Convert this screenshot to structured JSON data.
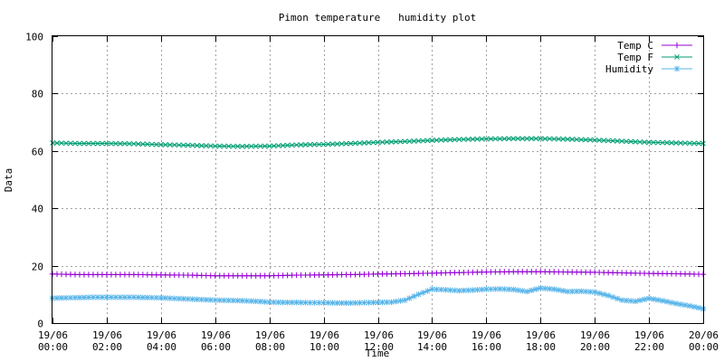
{
  "chart_data": {
    "type": "line",
    "title": "Pimon temperature   humidity plot",
    "xlabel": "Time",
    "ylabel": "Data",
    "ylim": [
      0,
      100
    ],
    "yticks": [
      0,
      20,
      40,
      60,
      80,
      100
    ],
    "xlim_hours": [
      0,
      24
    ],
    "xticks": [
      {
        "top": "19/06",
        "bottom": "00:00"
      },
      {
        "top": "19/06",
        "bottom": "02:00"
      },
      {
        "top": "19/06",
        "bottom": "04:00"
      },
      {
        "top": "19/06",
        "bottom": "06:00"
      },
      {
        "top": "19/06",
        "bottom": "08:00"
      },
      {
        "top": "19/06",
        "bottom": "10:00"
      },
      {
        "top": "19/06",
        "bottom": "12:00"
      },
      {
        "top": "19/06",
        "bottom": "14:00"
      },
      {
        "top": "19/06",
        "bottom": "16:00"
      },
      {
        "top": "19/06",
        "bottom": "18:00"
      },
      {
        "top": "19/06",
        "bottom": "20:00"
      },
      {
        "top": "19/06",
        "bottom": "22:00"
      },
      {
        "top": "20/06",
        "bottom": "00:00"
      }
    ],
    "grid": true,
    "legend_position": "top-right",
    "series": [
      {
        "name": "Temp C",
        "color": "#9400d3",
        "marker": "plus",
        "x": [
          0,
          1,
          2,
          3,
          4,
          5,
          6,
          7,
          8,
          9,
          10,
          11,
          12,
          13,
          14,
          15,
          16,
          17,
          18,
          19,
          20,
          21,
          22,
          23,
          24
        ],
        "values": [
          17.1,
          16.9,
          16.9,
          16.9,
          16.8,
          16.7,
          16.5,
          16.5,
          16.5,
          16.7,
          16.8,
          16.9,
          17.1,
          17.2,
          17.4,
          17.6,
          17.8,
          17.9,
          17.9,
          17.8,
          17.7,
          17.5,
          17.3,
          17.2,
          17.0
        ]
      },
      {
        "name": "Temp F",
        "color": "#009e73",
        "marker": "cross",
        "x": [
          0,
          1,
          2,
          3,
          4,
          5,
          6,
          7,
          8,
          9,
          10,
          11,
          12,
          13,
          14,
          15,
          16,
          17,
          18,
          19,
          20,
          21,
          22,
          23,
          24
        ],
        "values": [
          62.8,
          62.6,
          62.6,
          62.5,
          62.2,
          62.0,
          61.7,
          61.6,
          61.7,
          62.1,
          62.3,
          62.6,
          63.0,
          63.3,
          63.7,
          64.0,
          64.2,
          64.3,
          64.3,
          64.1,
          63.8,
          63.4,
          63.0,
          62.8,
          62.6
        ]
      },
      {
        "name": "Humidity",
        "color": "#56b4e9",
        "marker": "star",
        "x": [
          0,
          0.5,
          1,
          1.5,
          2,
          2.5,
          3,
          3.5,
          4,
          4.5,
          5,
          5.5,
          6,
          6.5,
          7,
          7.5,
          8,
          8.5,
          9,
          9.5,
          10,
          10.5,
          11,
          11.5,
          12,
          12.5,
          13,
          13.5,
          14,
          14.5,
          15,
          15.5,
          16,
          16.5,
          17,
          17.5,
          18,
          18.5,
          19,
          19.5,
          20,
          20.5,
          21,
          21.5,
          22,
          22.5,
          23,
          23.5,
          24
        ],
        "values": [
          8.7,
          8.8,
          8.9,
          9.0,
          9.0,
          9.0,
          9.0,
          8.9,
          8.8,
          8.6,
          8.4,
          8.2,
          8.0,
          7.9,
          7.8,
          7.6,
          7.3,
          7.2,
          7.2,
          7.1,
          7.1,
          7.0,
          7.0,
          7.1,
          7.2,
          7.3,
          8.0,
          10.0,
          11.8,
          11.6,
          11.3,
          11.5,
          11.8,
          11.9,
          11.7,
          11.0,
          12.2,
          11.8,
          11.0,
          11.1,
          10.8,
          9.6,
          8.0,
          7.6,
          8.6,
          7.8,
          6.8,
          6.0,
          5.0
        ]
      }
    ]
  }
}
